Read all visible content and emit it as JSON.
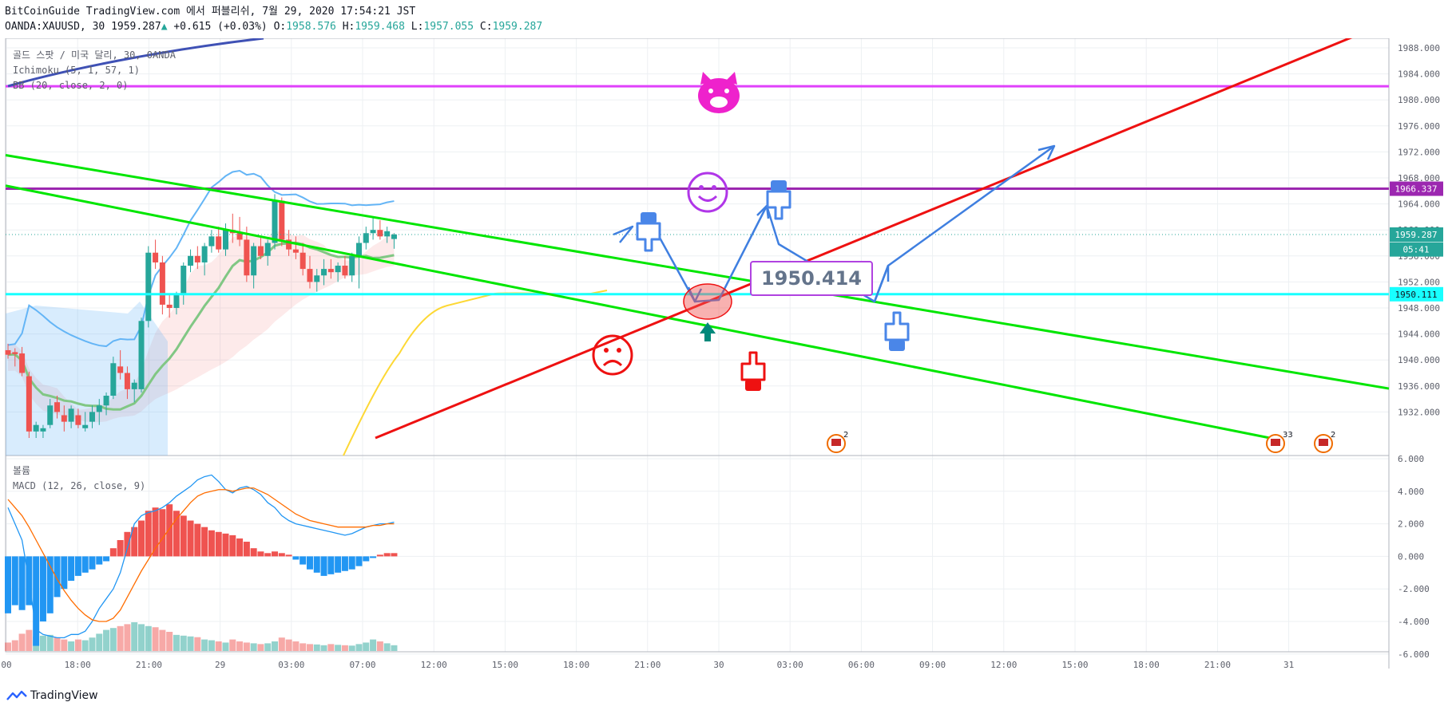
{
  "header": {
    "line1": "BitCoinGuide TradingView.com 에서 퍼블리쉬, 7월 29, 2020 17:54:21 JST",
    "symbol": "OANDA:XAUUSD, 30",
    "last": "1959.287",
    "change_arrow": "▲",
    "change": "+0.615 (+0.03%)",
    "o_label": "O:",
    "o": "1958.576",
    "h_label": "H:",
    "h": "1959.468",
    "l_label": "L:",
    "l": "1957.055",
    "c_label": "C:",
    "c": "1959.287"
  },
  "legend": {
    "title": "골드 스팟 / 미국 달리, 30, OANDA",
    "ichimoku": "Ichimoku (5, 1, 57, 1)",
    "bb": "BB (20, close, 2, 0)",
    "volume": "볼륨",
    "macd": "MACD (12, 26, close, 9)"
  },
  "annotation": {
    "price_box": "1950.414"
  },
  "footer": {
    "brand": "TradingView"
  },
  "colors": {
    "up": "#26a69a",
    "down": "#ef5350",
    "bb": "#64b5f6",
    "kijun": "#81c784",
    "chikou": "#fdd835",
    "magenta": "#e040fb",
    "purple": "#9c27b0",
    "cyan": "#18ffff",
    "green": "#00e600",
    "red": "#ee1111",
    "drawing_blue": "#3f7fe0"
  },
  "chart_data": [
    {
      "type": "candlestick",
      "title": "골드 스팟 / 미국 달리, 30, OANDA",
      "ylim": [
        1928,
        1990
      ],
      "y_ticks": [
        1932,
        1936,
        1940,
        1944,
        1948,
        1952,
        1956,
        1960,
        1964,
        1968,
        1972,
        1976,
        1980,
        1984,
        1988
      ],
      "x_ticks": [
        "00",
        "18:00",
        "21:00",
        "29",
        "03:00",
        "07:00",
        "12:00",
        "15:00",
        "18:00",
        "21:00",
        "30",
        "03:00",
        "06:00",
        "09:00",
        "12:00",
        "15:00",
        "18:00",
        "21:00",
        "31"
      ],
      "price_labels": [
        "1966.337",
        "1959.287",
        "05:41",
        "1950.111"
      ],
      "horizontal_levels": [
        {
          "price": 1982.1,
          "color": "magenta"
        },
        {
          "price": 1966.337,
          "color": "purple"
        },
        {
          "price": 1950.111,
          "color": "cyan"
        }
      ],
      "ohlc": [
        [
          1941.5,
          1942.5,
          1940.2,
          1940.8
        ],
        [
          1941.2,
          1941.8,
          1939.0,
          1940.9
        ],
        [
          1941.0,
          1942.0,
          1937.5,
          1938.0
        ],
        [
          1937.5,
          1938.2,
          1928.0,
          1929.0
        ],
        [
          1929.0,
          1930.5,
          1928.0,
          1930.0
        ],
        [
          1929.0,
          1930.0,
          1928.0,
          1929.5
        ],
        [
          1930.0,
          1934.0,
          1929.5,
          1933.0
        ],
        [
          1933.5,
          1934.5,
          1931.0,
          1932.0
        ],
        [
          1931.5,
          1933.0,
          1929.0,
          1930.5
        ],
        [
          1930.5,
          1933.0,
          1929.5,
          1932.5
        ],
        [
          1931.5,
          1932.5,
          1929.5,
          1930.0
        ],
        [
          1929.5,
          1932.0,
          1929.0,
          1930.0
        ],
        [
          1930.5,
          1933.0,
          1929.5,
          1932.0
        ],
        [
          1932.0,
          1934.0,
          1930.0,
          1933.0
        ],
        [
          1933.0,
          1935.0,
          1931.5,
          1934.5
        ],
        [
          1934.5,
          1940.5,
          1934.0,
          1939.5
        ],
        [
          1939.0,
          1941.5,
          1937.0,
          1938.0
        ],
        [
          1938.0,
          1939.0,
          1934.0,
          1935.5
        ],
        [
          1935.5,
          1937.0,
          1933.5,
          1936.5
        ],
        [
          1935.5,
          1946.5,
          1935.0,
          1946.0
        ],
        [
          1946.0,
          1957.5,
          1945.0,
          1956.5
        ],
        [
          1956.5,
          1958.5,
          1954.0,
          1955.0
        ],
        [
          1955.0,
          1956.0,
          1947.0,
          1948.5
        ],
        [
          1948.5,
          1950.0,
          1946.5,
          1948.0
        ],
        [
          1948.0,
          1950.5,
          1947.0,
          1950.0
        ],
        [
          1950.0,
          1955.0,
          1948.5,
          1954.5
        ],
        [
          1954.5,
          1957.0,
          1953.5,
          1956.0
        ],
        [
          1956.0,
          1957.5,
          1954.0,
          1955.0
        ],
        [
          1955.0,
          1958.0,
          1953.0,
          1957.5
        ],
        [
          1957.5,
          1960.0,
          1956.5,
          1959.0
        ],
        [
          1959.0,
          1960.5,
          1956.5,
          1957.0
        ],
        [
          1957.0,
          1961.0,
          1956.0,
          1960.0
        ],
        [
          1960.0,
          1962.5,
          1958.0,
          1959.5
        ],
        [
          1959.5,
          1962.0,
          1957.5,
          1958.5
        ],
        [
          1958.5,
          1960.5,
          1952.0,
          1953.0
        ],
        [
          1953.0,
          1958.0,
          1951.0,
          1957.5
        ],
        [
          1957.5,
          1959.0,
          1955.5,
          1956.0
        ],
        [
          1956.0,
          1958.5,
          1954.5,
          1958.0
        ],
        [
          1958.0,
          1965.5,
          1957.0,
          1964.5
        ],
        [
          1964.5,
          1965.0,
          1957.5,
          1958.5
        ],
        [
          1958.5,
          1960.0,
          1956.0,
          1957.0
        ],
        [
          1957.0,
          1959.0,
          1955.5,
          1956.5
        ],
        [
          1956.5,
          1958.0,
          1953.0,
          1954.0
        ],
        [
          1954.0,
          1956.0,
          1951.0,
          1952.0
        ],
        [
          1952.0,
          1954.0,
          1950.5,
          1953.0
        ],
        [
          1953.0,
          1955.5,
          1951.5,
          1954.0
        ],
        [
          1954.0,
          1955.5,
          1952.5,
          1953.5
        ],
        [
          1953.5,
          1955.0,
          1952.0,
          1954.5
        ],
        [
          1954.5,
          1956.0,
          1952.5,
          1953.0
        ],
        [
          1953.0,
          1956.5,
          1952.0,
          1956.0
        ],
        [
          1956.0,
          1959.0,
          1951.0,
          1958.0
        ],
        [
          1958.0,
          1960.5,
          1957.0,
          1959.5
        ],
        [
          1959.5,
          1962.0,
          1958.5,
          1960.0
        ],
        [
          1960.0,
          1961.5,
          1958.5,
          1959.0
        ],
        [
          1959.0,
          1960.5,
          1958.0,
          1959.8
        ],
        [
          1958.6,
          1959.5,
          1957.1,
          1959.3
        ]
      ]
    },
    {
      "type": "bar",
      "title": "MACD (12, 26, close, 9)",
      "ylim": [
        -6,
        6
      ],
      "y_ticks": [
        "6.000",
        "4.000",
        "2.000",
        "0.000",
        "-2.000",
        "-4.000",
        "-6.000"
      ],
      "histogram": [
        -3.5,
        -3.0,
        -3.3,
        -3.0,
        -5.5,
        -4.0,
        -3.5,
        -2.5,
        -2.0,
        -1.5,
        -1.2,
        -1.0,
        -0.8,
        -0.5,
        -0.3,
        0.5,
        1.0,
        1.5,
        1.8,
        2.2,
        2.8,
        3.0,
        2.9,
        3.2,
        2.8,
        2.5,
        2.2,
        2.0,
        1.8,
        1.6,
        1.5,
        1.4,
        1.3,
        1.1,
        0.9,
        0.5,
        0.3,
        0.2,
        0.3,
        0.2,
        0.1,
        -0.2,
        -0.5,
        -0.8,
        -1.0,
        -1.2,
        -1.1,
        -1.0,
        -0.9,
        -0.8,
        -0.6,
        -0.3,
        -0.1,
        0.1,
        0.2,
        0.2
      ],
      "macd_line": [
        3.0,
        2.0,
        1.0,
        -1.5,
        -4.5,
        -4.8,
        -4.9,
        -5.0,
        -5.0,
        -4.8,
        -4.8,
        -4.6,
        -4.0,
        -3.2,
        -2.6,
        -2.0,
        -1.0,
        0.5,
        2.0,
        2.5,
        2.7,
        2.8,
        3.0,
        3.3,
        3.7,
        4.0,
        4.3,
        4.7,
        4.9,
        5.0,
        4.6,
        4.1,
        3.9,
        4.2,
        4.3,
        4.1,
        3.8,
        3.3,
        3.0,
        2.5,
        2.2,
        2.0,
        1.9,
        1.8,
        1.7,
        1.6,
        1.5,
        1.4,
        1.3,
        1.4,
        1.6,
        1.8,
        1.9,
        2.0,
        2.0,
        2.1
      ],
      "signal_line": [
        3.5,
        3.0,
        2.5,
        1.8,
        1.0,
        0.2,
        -0.6,
        -1.4,
        -2.1,
        -2.7,
        -3.2,
        -3.6,
        -3.9,
        -4.0,
        -4.0,
        -3.8,
        -3.3,
        -2.5,
        -1.7,
        -0.9,
        -0.2,
        0.5,
        1.1,
        1.7,
        2.3,
        2.8,
        3.3,
        3.7,
        3.9,
        4.0,
        4.1,
        4.1,
        4.0,
        4.1,
        4.2,
        4.2,
        4.0,
        3.8,
        3.5,
        3.2,
        2.9,
        2.6,
        2.4,
        2.2,
        2.1,
        2.0,
        1.9,
        1.8,
        1.8,
        1.8,
        1.8,
        1.8,
        1.9,
        1.9,
        2.0,
        2.0
      ],
      "volume_relative": [
        0.22,
        0.28,
        0.45,
        0.55,
        0.38,
        0.4,
        0.42,
        0.35,
        0.3,
        0.25,
        0.3,
        0.28,
        0.35,
        0.45,
        0.55,
        0.6,
        0.65,
        0.7,
        0.75,
        0.7,
        0.65,
        0.62,
        0.55,
        0.5,
        0.42,
        0.4,
        0.38,
        0.36,
        0.3,
        0.28,
        0.25,
        0.22,
        0.3,
        0.25,
        0.22,
        0.2,
        0.18,
        0.2,
        0.25,
        0.35,
        0.3,
        0.25,
        0.2,
        0.18,
        0.17,
        0.15,
        0.18,
        0.16,
        0.15,
        0.14,
        0.18,
        0.22,
        0.3,
        0.25,
        0.2,
        0.15
      ]
    }
  ]
}
